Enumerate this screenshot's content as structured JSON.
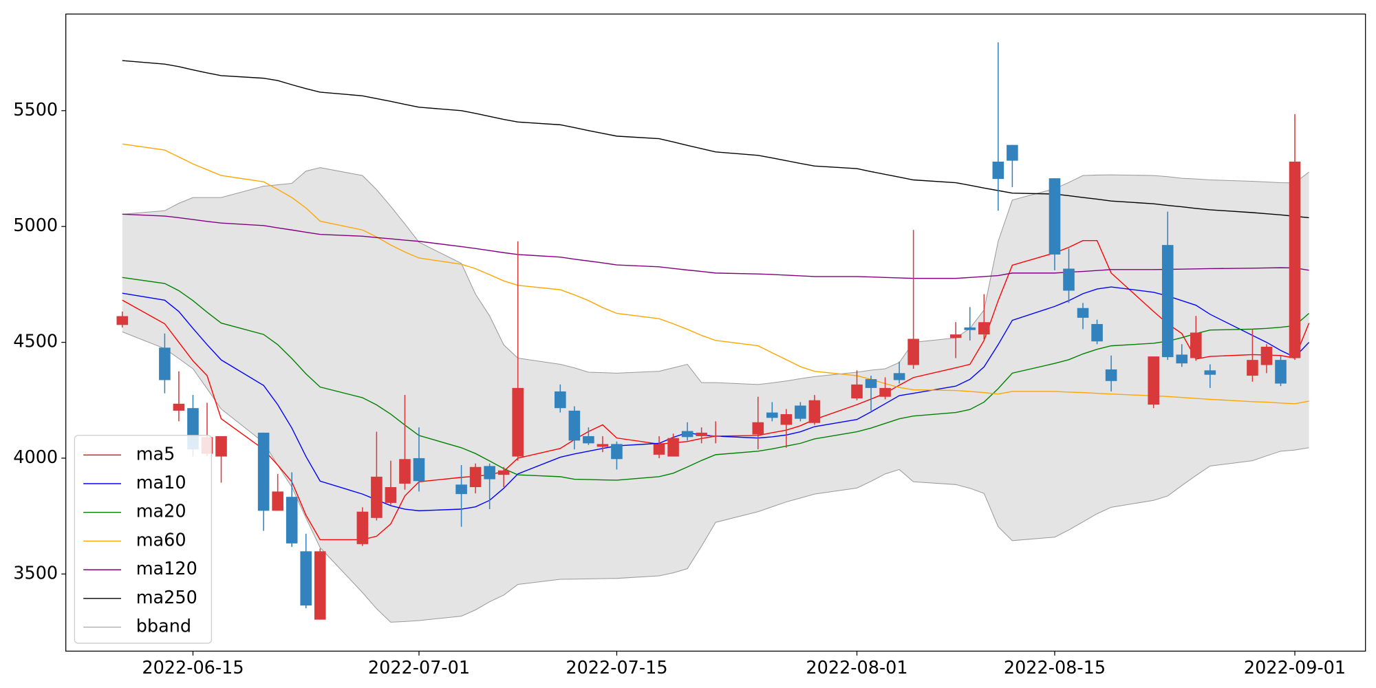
{
  "chart_data": {
    "type": "candlestick",
    "x": [
      "2022-06-10",
      "2022-06-13",
      "2022-06-14",
      "2022-06-15",
      "2022-06-16",
      "2022-06-17",
      "2022-06-20",
      "2022-06-21",
      "2022-06-22",
      "2022-06-23",
      "2022-06-24",
      "2022-06-27",
      "2022-06-28",
      "2022-06-29",
      "2022-06-30",
      "2022-07-01",
      "2022-07-04",
      "2022-07-05",
      "2022-07-06",
      "2022-07-07",
      "2022-07-08",
      "2022-07-11",
      "2022-07-12",
      "2022-07-13",
      "2022-07-14",
      "2022-07-15",
      "2022-07-18",
      "2022-07-19",
      "2022-07-20",
      "2022-07-21",
      "2022-07-22",
      "2022-07-25",
      "2022-07-26",
      "2022-07-27",
      "2022-07-28",
      "2022-07-29",
      "2022-08-01",
      "2022-08-02",
      "2022-08-03",
      "2022-08-04",
      "2022-08-05",
      "2022-08-08",
      "2022-08-09",
      "2022-08-10",
      "2022-08-11",
      "2022-08-12",
      "2022-08-15",
      "2022-08-16",
      "2022-08-17",
      "2022-08-18",
      "2022-08-19",
      "2022-08-22",
      "2022-08-23",
      "2022-08-24",
      "2022-08-25",
      "2022-08-26",
      "2022-08-29",
      "2022-08-30",
      "2022-08-31",
      "2022-09-01",
      "2022-09-02"
    ],
    "xlim": [
      "2022-06-06",
      "2022-09-06"
    ],
    "xticks": [
      "2022-06-15",
      "2022-07-01",
      "2022-07-15",
      "2022-08-01",
      "2022-08-15",
      "2022-09-01"
    ],
    "ylim": [
      3167,
      5917
    ],
    "yticks": [
      3500,
      4000,
      4500,
      5000,
      5500
    ],
    "legend": "lower left",
    "candles": {
      "up_color": "#d9393b",
      "down_color": "#3182bd",
      "open": [
        4575,
        4477,
        4205,
        4216,
        4019,
        4007,
        4110,
        3773,
        3833,
        3598,
        3303,
        3629,
        3742,
        3807,
        3890,
        4000,
        3886,
        3875,
        3966,
        3928,
        4007,
        4288,
        4205,
        4095,
        4049,
        4061,
        4015,
        4007,
        4117,
        4095,
        4095,
        4102,
        4197,
        4144,
        4227,
        4152,
        4258,
        4341,
        4265,
        4367,
        4402,
        4519,
        4564,
        4534,
        5280,
        5352,
        5208,
        4818,
        4648,
        4579,
        4383,
        4231,
        4920,
        4447,
        4432,
        4379,
        4356,
        4402,
        4424,
        4432,
        null
      ],
      "high": [
        4633,
        4538,
        4375,
        4273,
        4239,
        4095,
        4110,
        3932,
        3939,
        3674,
        3610,
        3788,
        4114,
        3989,
        4273,
        4133,
        3970,
        3977,
        3977,
        3962,
        4936,
        4318,
        4224,
        4133,
        4095,
        4072,
        4095,
        4106,
        4155,
        4133,
        4159,
        4265,
        4242,
        4212,
        4242,
        4273,
        4379,
        4356,
        4349,
        4417,
        4985,
        4587,
        4652,
        4708,
        5795,
        5352,
        5208,
        4905,
        4670,
        4598,
        4443,
        4439,
        5064,
        4492,
        4614,
        4405,
        4557,
        4492,
        4443,
        5485,
        null
      ],
      "low": [
        4564,
        4280,
        4159,
        4007,
        4007,
        3894,
        3686,
        3773,
        3617,
        3352,
        3303,
        3621,
        3731,
        3799,
        3864,
        3856,
        3704,
        3848,
        3780,
        3875,
        3989,
        4197,
        4038,
        4057,
        4026,
        3951,
        4000,
        4007,
        4076,
        4064,
        4064,
        4038,
        4159,
        4045,
        4159,
        4144,
        4250,
        4205,
        4254,
        4322,
        4386,
        4432,
        4508,
        4508,
        5068,
        5170,
        4811,
        4670,
        4557,
        4492,
        4288,
        4216,
        4424,
        4394,
        4420,
        4303,
        4330,
        4367,
        4311,
        4424,
        null
      ],
      "close": [
        4613,
        4337,
        4235,
        4038,
        4091,
        4095,
        3773,
        3856,
        3632,
        3364,
        3598,
        3769,
        3920,
        3875,
        3996,
        3901,
        3845,
        3962,
        3909,
        3947,
        4303,
        4216,
        4076,
        4064,
        4061,
        3996,
        4061,
        4087,
        4091,
        4110,
        4098,
        4155,
        4174,
        4190,
        4170,
        4250,
        4318,
        4303,
        4303,
        4337,
        4515,
        4534,
        4553,
        4587,
        5205,
        5284,
        4879,
        4723,
        4606,
        4504,
        4333,
        4439,
        4436,
        4409,
        4542,
        4360,
        4424,
        4481,
        4322,
        5280,
        null
      ]
    },
    "series": [
      {
        "name": "ma5",
        "color": "#ff0000",
        "values": [
          4682,
          4580,
          4500,
          4420,
          4356,
          4170,
          4038,
          3970,
          3898,
          3754,
          3648,
          3648,
          3663,
          3716,
          3837,
          3898,
          3917,
          3922,
          3928,
          3943,
          4000,
          4042,
          4080,
          4115,
          4144,
          4087,
          4061,
          4066,
          4072,
          4085,
          4095,
          4098,
          4110,
          4121,
          4140,
          4167,
          4231,
          4255,
          4280,
          4315,
          4348,
          4390,
          4405,
          4508,
          4680,
          4833,
          4886,
          4910,
          4939,
          4939,
          4799,
          4633,
          4580,
          4538,
          4428,
          4439,
          4447,
          4445,
          4443,
          4432,
          4583
        ]
      },
      {
        "name": "ma10",
        "color": "#0000ff",
        "values": [
          4712,
          4682,
          4633,
          4560,
          4490,
          4424,
          4314,
          4231,
          4130,
          4007,
          3901,
          3845,
          3820,
          3795,
          3780,
          3773,
          3780,
          3790,
          3818,
          3870,
          3932,
          4004,
          4018,
          4030,
          4042,
          4053,
          4064,
          4090,
          4110,
          4100,
          4095,
          4087,
          4092,
          4100,
          4114,
          4136,
          4167,
          4200,
          4235,
          4270,
          4280,
          4311,
          4340,
          4394,
          4490,
          4595,
          4655,
          4680,
          4710,
          4730,
          4739,
          4716,
          4700,
          4680,
          4660,
          4621,
          4530,
          4500,
          4465,
          4436,
          4500
        ]
      },
      {
        "name": "ma20",
        "color": "#008000",
        "values": [
          4780,
          4754,
          4723,
          4680,
          4630,
          4583,
          4534,
          4490,
          4430,
          4364,
          4307,
          4261,
          4230,
          4190,
          4143,
          4098,
          4045,
          4020,
          3988,
          3955,
          3928,
          3920,
          3909,
          3908,
          3906,
          3905,
          3920,
          3935,
          3962,
          3990,
          4015,
          4030,
          4040,
          4052,
          4064,
          4083,
          4114,
          4130,
          4150,
          4170,
          4182,
          4197,
          4210,
          4242,
          4300,
          4367,
          4409,
          4425,
          4450,
          4470,
          4485,
          4496,
          4505,
          4520,
          4538,
          4553,
          4557,
          4560,
          4565,
          4572,
          4625
        ]
      },
      {
        "name": "ma60",
        "color": "#ffa500",
        "values": [
          5356,
          5330,
          5300,
          5270,
          5245,
          5220,
          5193,
          5160,
          5125,
          5080,
          5023,
          4985,
          4955,
          4920,
          4890,
          4864,
          4837,
          4818,
          4792,
          4765,
          4746,
          4727,
          4705,
          4680,
          4650,
          4625,
          4602,
          4580,
          4556,
          4530,
          4508,
          4485,
          4455,
          4425,
          4395,
          4375,
          4356,
          4340,
          4322,
          4305,
          4295,
          4292,
          4288,
          4283,
          4277,
          4288,
          4288,
          4285,
          4283,
          4280,
          4277,
          4269,
          4266,
          4262,
          4258,
          4254,
          4244,
          4242,
          4238,
          4235,
          4246
        ]
      },
      {
        "name": "ma120",
        "color": "#800080",
        "values": [
          5053,
          5045,
          5038,
          5030,
          5022,
          5015,
          5004,
          4994,
          4985,
          4975,
          4966,
          4958,
          4952,
          4947,
          4941,
          4936,
          4913,
          4905,
          4896,
          4887,
          4879,
          4868,
          4859,
          4851,
          4843,
          4834,
          4826,
          4819,
          4812,
          4806,
          4799,
          4795,
          4793,
          4790,
          4787,
          4784,
          4784,
          4782,
          4780,
          4778,
          4776,
          4776,
          4780,
          4784,
          4788,
          4799,
          4799,
          4803,
          4806,
          4810,
          4814,
          4814,
          4815,
          4816,
          4817,
          4818,
          4820,
          4821,
          4822,
          4821,
          4811
        ]
      },
      {
        "name": "ma250",
        "color": "#000000",
        "values": [
          5716,
          5701,
          5690,
          5676,
          5663,
          5651,
          5640,
          5630,
          5612,
          5595,
          5580,
          5564,
          5552,
          5540,
          5527,
          5515,
          5500,
          5488,
          5475,
          5462,
          5451,
          5439,
          5427,
          5414,
          5402,
          5390,
          5379,
          5365,
          5350,
          5336,
          5322,
          5307,
          5296,
          5284,
          5272,
          5261,
          5250,
          5237,
          5225,
          5213,
          5201,
          5189,
          5178,
          5166,
          5155,
          5144,
          5140,
          5133,
          5125,
          5118,
          5110,
          5098,
          5091,
          5085,
          5078,
          5072,
          5060,
          5055,
          5050,
          5044,
          5038
        ]
      }
    ],
    "bband": {
      "name": "bband",
      "color": "#e4e4e4",
      "edge_color": "#999999",
      "upper": [
        5053,
        5068,
        5100,
        5125,
        5125,
        5125,
        5174,
        5180,
        5186,
        5239,
        5254,
        5220,
        5159,
        5087,
        5011,
        4932,
        4841,
        4708,
        4614,
        4489,
        4432,
        4405,
        4390,
        4371,
        4369,
        4367,
        4375,
        4390,
        4405,
        4326,
        4326,
        4318,
        4325,
        4333,
        4343,
        4352,
        4371,
        4380,
        4386,
        4413,
        4500,
        4519,
        4560,
        4640,
        4936,
        5114,
        5163,
        5190,
        5220,
        5222,
        5223,
        5220,
        5215,
        5208,
        5205,
        5201,
        5195,
        5192,
        5189,
        5188,
        5235
      ],
      "lower": [
        4545,
        4473,
        4430,
        4386,
        4300,
        4212,
        4068,
        3970,
        3875,
        3742,
        3614,
        3420,
        3350,
        3292,
        3295,
        3299,
        3318,
        3345,
        3380,
        3409,
        3455,
        3477,
        3478,
        3479,
        3480,
        3481,
        3492,
        3505,
        3523,
        3620,
        3723,
        3769,
        3790,
        3811,
        3828,
        3845,
        3871,
        3900,
        3932,
        3951,
        3898,
        3886,
        3870,
        3848,
        3704,
        3644,
        3659,
        3690,
        3725,
        3760,
        3788,
        3818,
        3837,
        3882,
        3925,
        3966,
        3989,
        4010,
        4030,
        4035,
        4045
      ]
    }
  }
}
